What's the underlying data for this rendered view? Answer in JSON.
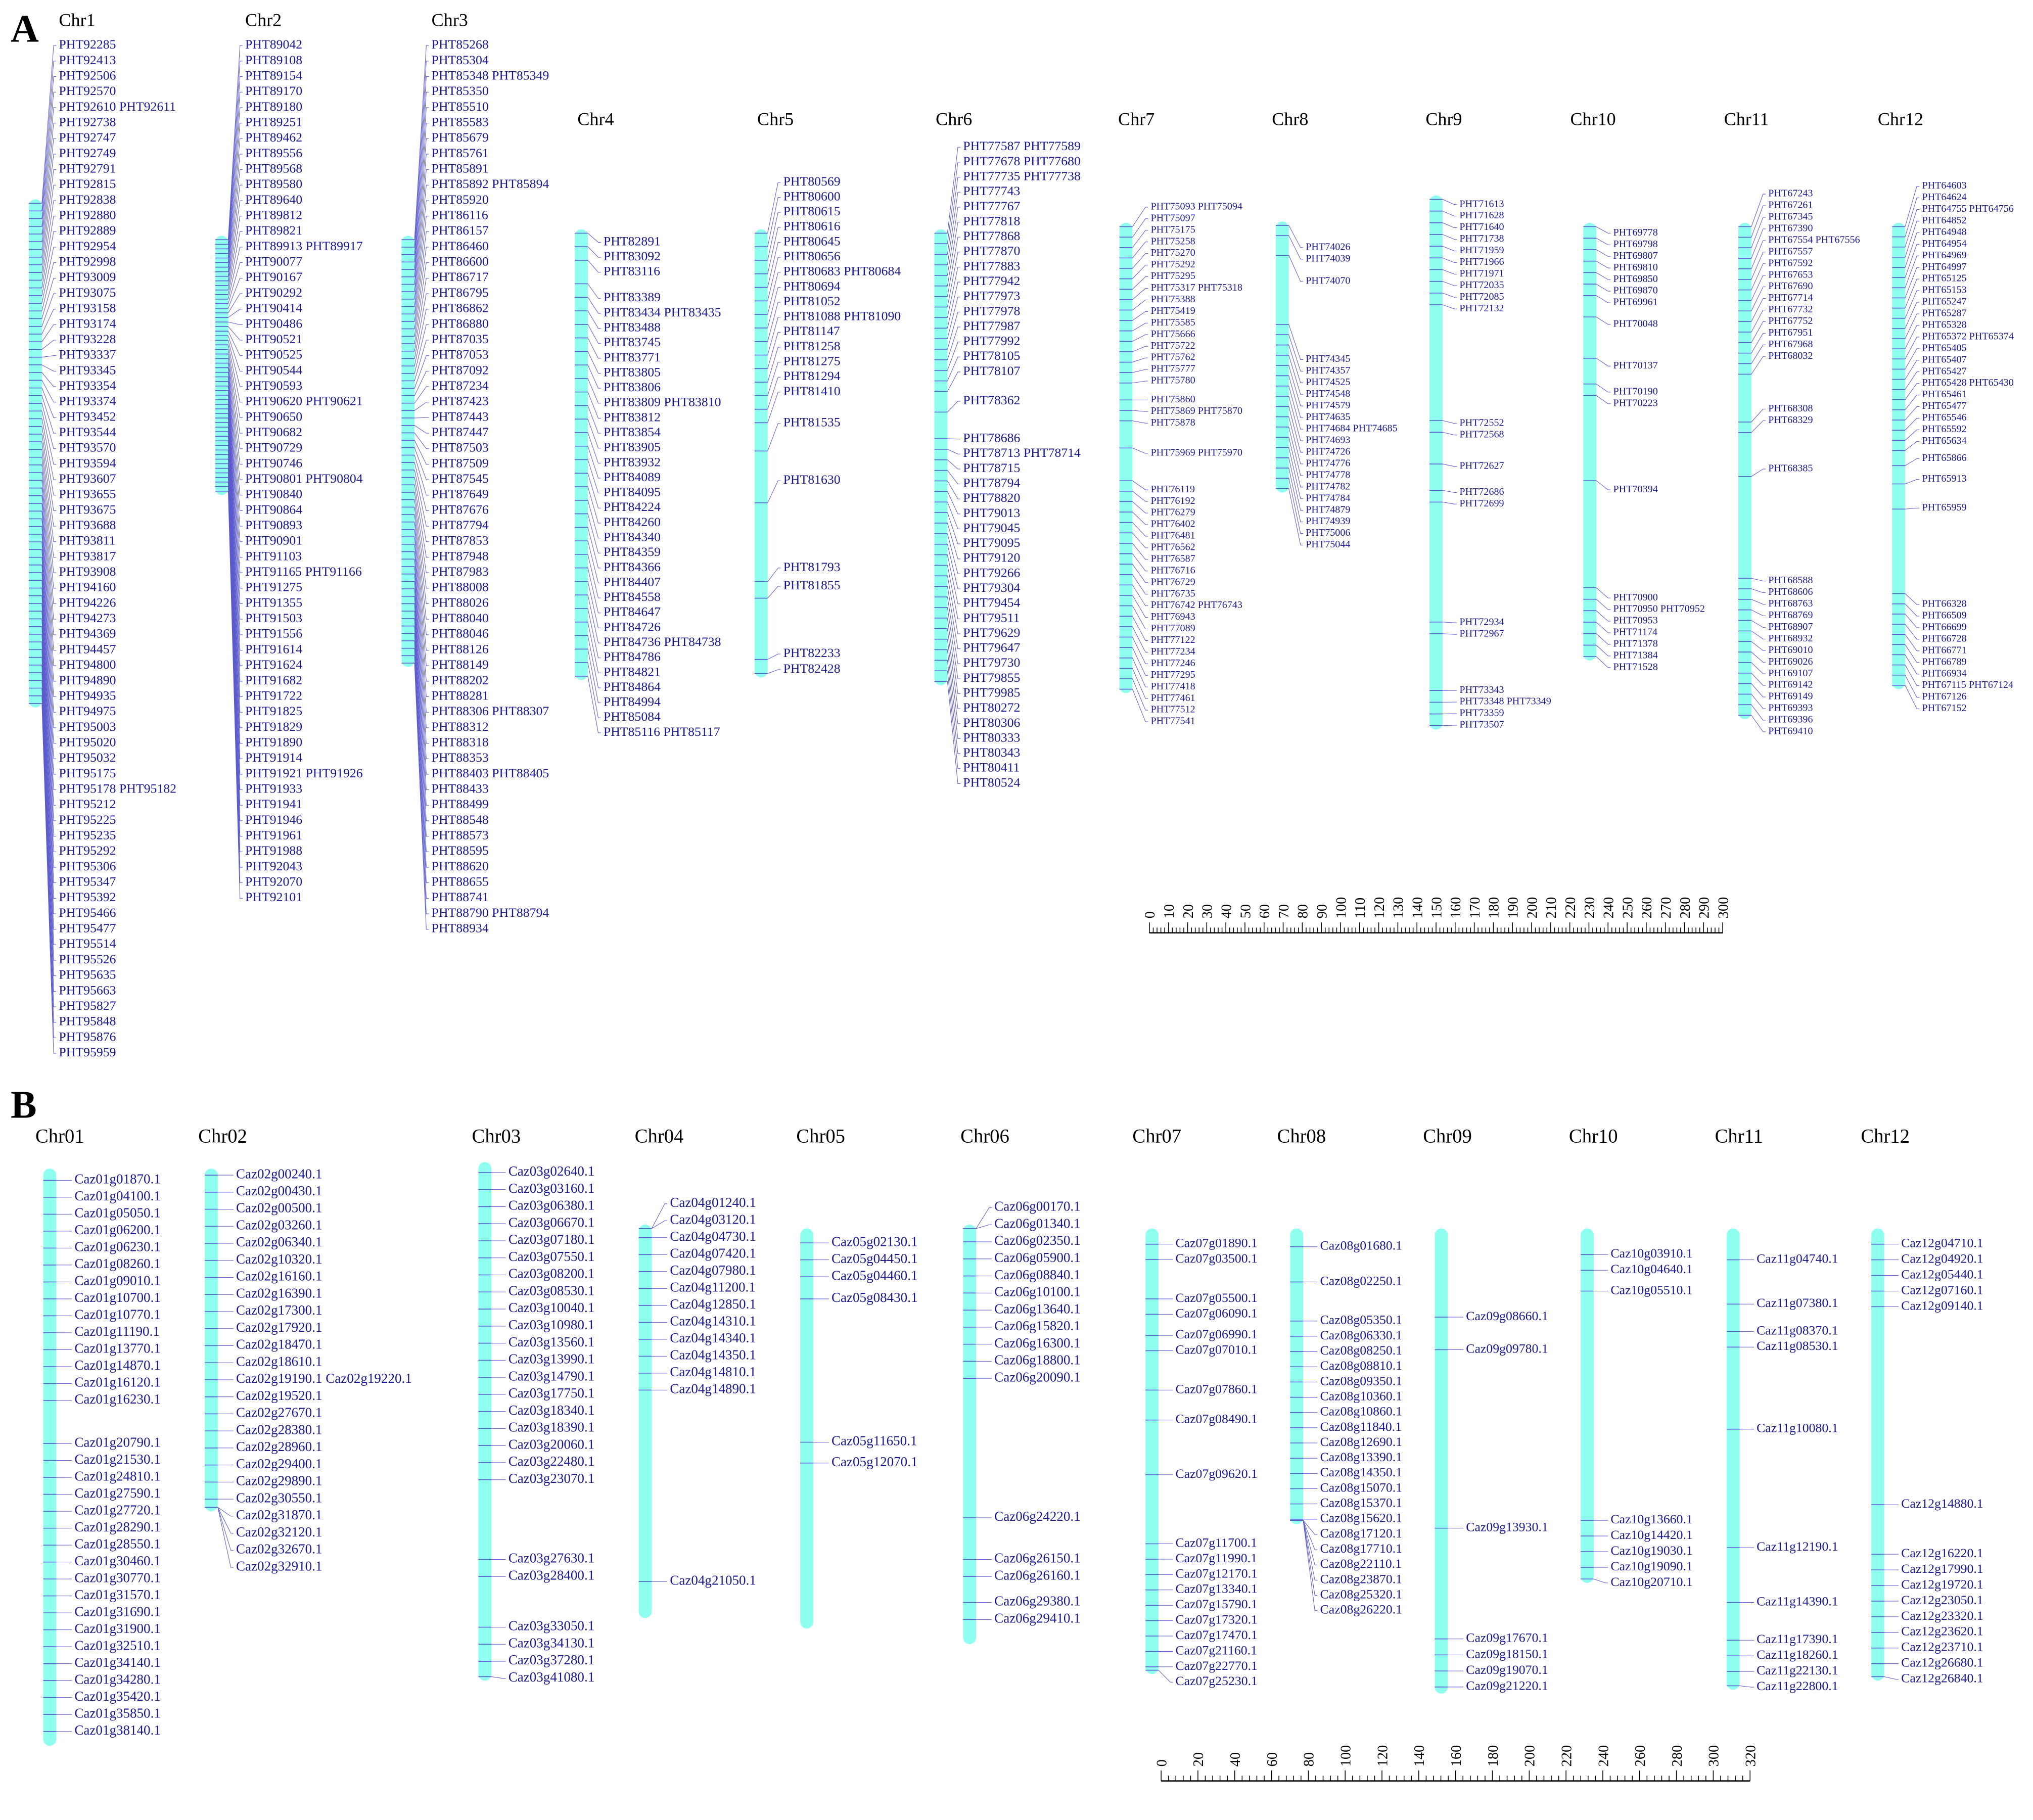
{
  "colors": {
    "chromosome": "#8ffff0",
    "gene_text": "#1a1a8c",
    "connector": "#5a5acc"
  },
  "panel_a": {
    "label": "A",
    "chromosomes": [
      {
        "name": "Chr1",
        "genes": [
          "PHT92285",
          "PHT92413",
          "PHT92506",
          "PHT92570",
          "PHT92610 PHT92611",
          "PHT92738",
          "PHT92747",
          "PHT92749",
          "PHT92791",
          "PHT92815",
          "PHT92838",
          "PHT92880",
          "PHT92889",
          "PHT92954",
          "PHT92998",
          "PHT93009",
          "PHT93075",
          "PHT93158",
          "PHT93174",
          "PHT93228",
          "PHT93337",
          "PHT93345",
          "PHT93354",
          "PHT93374",
          "PHT93452",
          "PHT93544",
          "PHT93570",
          "PHT93594",
          "PHT93607",
          "PHT93655",
          "PHT93675",
          "PHT93688",
          "PHT93811",
          "PHT93817",
          "PHT93908",
          "PHT94160",
          "PHT94226",
          "PHT94273",
          "PHT94369",
          "PHT94457",
          "PHT94800",
          "PHT94890",
          "PHT94935",
          "PHT94975",
          "PHT95003",
          "PHT95020",
          "PHT95032",
          "PHT95175",
          "PHT95178 PHT95182",
          "PHT95212",
          "PHT95225",
          "PHT95235",
          "PHT95292",
          "PHT95306",
          "PHT95347",
          "PHT95392",
          "PHT95466",
          "PHT95477",
          "PHT95514",
          "PHT95526",
          "PHT95635",
          "PHT95663",
          "PHT95827",
          "PHT95848",
          "PHT95876",
          "PHT95959"
        ]
      },
      {
        "name": "Chr2",
        "genes": [
          "PHT89042",
          "PHT89108",
          "PHT89154",
          "PHT89170",
          "PHT89180",
          "PHT89251",
          "PHT89462",
          "PHT89556",
          "PHT89568",
          "PHT89580",
          "PHT89640",
          "PHT89812",
          "PHT89821",
          "PHT89913 PHT89917",
          "PHT90077",
          "PHT90167",
          "PHT90292",
          "PHT90414",
          "PHT90486",
          "PHT90521",
          "PHT90525",
          "PHT90544",
          "PHT90593",
          "PHT90620 PHT90621",
          "PHT90650",
          "PHT90682",
          "PHT90729",
          "PHT90746",
          "PHT90801 PHT90804",
          "PHT90840",
          "PHT90864",
          "PHT90893",
          "PHT90901",
          "PHT91103",
          "PHT91165 PHT91166",
          "PHT91275",
          "PHT91355",
          "PHT91503",
          "PHT91556",
          "PHT91614",
          "PHT91624",
          "PHT91682",
          "PHT91722",
          "PHT91825",
          "PHT91829",
          "PHT91890",
          "PHT91914",
          "PHT91921 PHT91926",
          "PHT91933",
          "PHT91941",
          "PHT91946",
          "PHT91961",
          "PHT91988",
          "PHT92043",
          "PHT92070",
          "PHT92101"
        ]
      },
      {
        "name": "Chr3",
        "genes": [
          "PHT85268",
          "PHT85304",
          "PHT85348 PHT85349",
          "PHT85350",
          "PHT85510",
          "PHT85583",
          "PHT85679",
          "PHT85761",
          "PHT85891",
          "PHT85892 PHT85894",
          "PHT85920",
          "PHT86116",
          "PHT86157",
          "PHT86460",
          "PHT86600",
          "PHT86717",
          "PHT86795",
          "PHT86862",
          "PHT86880",
          "PHT87035",
          "PHT87053",
          "PHT87092",
          "PHT87234",
          "PHT87423",
          "PHT87443",
          "PHT87447",
          "PHT87503",
          "PHT87509",
          "PHT87545",
          "PHT87649",
          "PHT87676",
          "PHT87794",
          "PHT87853",
          "PHT87948",
          "PHT87983",
          "PHT88008",
          "PHT88026",
          "PHT88040",
          "PHT88046",
          "PHT88126",
          "PHT88149",
          "PHT88202",
          "PHT88281",
          "PHT88306 PHT88307",
          "PHT88312",
          "PHT88318",
          "PHT88353",
          "PHT88403 PHT88405",
          "PHT88433",
          "PHT88499",
          "PHT88548",
          "PHT88573",
          "PHT88595",
          "PHT88620",
          "PHT88655",
          "PHT88741",
          "PHT88790 PHT88794",
          "PHT88934"
        ]
      },
      {
        "name": "Chr4",
        "genes": [
          "PHT82891",
          "PHT83092",
          "PHT83116",
          "PHT83389",
          "PHT83434 PHT83435",
          "PHT83488",
          "PHT83745",
          "PHT83771",
          "PHT83805",
          "PHT83806",
          "PHT83809 PHT83810",
          "PHT83812",
          "PHT83854",
          "PHT83905",
          "PHT83932",
          "PHT84089",
          "PHT84095",
          "PHT84224",
          "PHT84260",
          "PHT84340",
          "PHT84359",
          "PHT84366",
          "PHT84407",
          "PHT84558",
          "PHT84647",
          "PHT84726",
          "PHT84736 PHT84738",
          "PHT84786",
          "PHT84821",
          "PHT84864",
          "PHT84994",
          "PHT85084",
          "PHT85116 PHT85117"
        ]
      },
      {
        "name": "Chr5",
        "genes": [
          "PHT80569",
          "PHT80600",
          "PHT80615",
          "PHT80616",
          "PHT80645",
          "PHT80656",
          "PHT80683 PHT80684",
          "PHT80694",
          "PHT81052",
          "PHT81088 PHT81090",
          "PHT81147",
          "PHT81258",
          "PHT81275",
          "PHT81294",
          "PHT81410",
          "PHT81535",
          "PHT81630",
          "PHT81793",
          "PHT81855",
          "PHT82233",
          "PHT82428"
        ]
      },
      {
        "name": "Chr6",
        "genes": [
          "PHT77587 PHT77589",
          "PHT77678 PHT77680",
          "PHT77735 PHT77738",
          "PHT77743",
          "PHT77767",
          "PHT77818",
          "PHT77868",
          "PHT77870",
          "PHT77883",
          "PHT77942",
          "PHT77973",
          "PHT77978",
          "PHT77987",
          "PHT77992",
          "PHT78105",
          "PHT78107",
          "PHT78362",
          "PHT78686",
          "PHT78713 PHT78714",
          "PHT78715",
          "PHT78794",
          "PHT78820",
          "PHT79013",
          "PHT79045",
          "PHT79095",
          "PHT79120",
          "PHT79266",
          "PHT79304",
          "PHT79454",
          "PHT79511",
          "PHT79629",
          "PHT79647",
          "PHT79730",
          "PHT79855",
          "PHT79985",
          "PHT80272",
          "PHT80306",
          "PHT80333",
          "PHT80343",
          "PHT80411",
          "PHT80524"
        ]
      },
      {
        "name": "Chr7",
        "genes": [
          "PHT75093 PHT75094",
          "PHT75097",
          "PHT75175",
          "PHT75258",
          "PHT75270",
          "PHT75292",
          "PHT75295",
          "PHT75317 PHT75318",
          "PHT75388",
          "PHT75419",
          "PHT75585",
          "PHT75666",
          "PHT75722",
          "PHT75762",
          "PHT75777",
          "PHT75780",
          "PHT75860",
          "PHT75869 PHT75870",
          "PHT75878",
          "PHT75969 PHT75970",
          "PHT76119",
          "PHT76192",
          "PHT76279",
          "PHT76402",
          "PHT76481",
          "PHT76562",
          "PHT76587",
          "PHT76716",
          "PHT76729",
          "PHT76735",
          "PHT76742 PHT76743",
          "PHT76943",
          "PHT77089",
          "PHT77122",
          "PHT77234",
          "PHT77246",
          "PHT77295",
          "PHT77418",
          "PHT77461",
          "PHT77512",
          "PHT77541"
        ]
      },
      {
        "name": "Chr8",
        "genes": [
          "PHT74026",
          "PHT74039",
          "PHT74070",
          "PHT74345",
          "PHT74357",
          "PHT74525",
          "PHT74548",
          "PHT74579",
          "PHT74635",
          "PHT74684 PHT74685",
          "PHT74693",
          "PHT74726",
          "PHT74776",
          "PHT74778",
          "PHT74782",
          "PHT74784",
          "PHT74879",
          "PHT74939",
          "PHT75006",
          "PHT75044"
        ]
      },
      {
        "name": "Chr9",
        "genes": [
          "PHT71613",
          "PHT71628",
          "PHT71640",
          "PHT71738",
          "PHT71959",
          "PHT71966",
          "PHT71971",
          "PHT72035",
          "PHT72085",
          "PHT72132",
          "PHT72552",
          "PHT72568",
          "PHT72627",
          "PHT72686",
          "PHT72699",
          "PHT72934",
          "PHT72967",
          "PHT73343",
          "PHT73348 PHT73349",
          "PHT73359",
          "PHT73507"
        ]
      },
      {
        "name": "Chr10",
        "genes": [
          "PHT69778",
          "PHT69798",
          "PHT69807",
          "PHT69810",
          "PHT69850",
          "PHT69870",
          "PHT69961",
          "PHT70048",
          "PHT70137",
          "PHT70190",
          "PHT70223",
          "PHT70394",
          "PHT70900",
          "PHT70950 PHT70952",
          "PHT70953",
          "PHT71174",
          "PHT71378",
          "PHT71384",
          "PHT71528"
        ]
      },
      {
        "name": "Chr11",
        "genes": [
          "PHT67243",
          "PHT67261",
          "PHT67345",
          "PHT67390",
          "PHT67554 PHT67556",
          "PHT67557",
          "PHT67592",
          "PHT67653",
          "PHT67690",
          "PHT67714",
          "PHT67732",
          "PHT67752",
          "PHT67951",
          "PHT67968",
          "PHT68032",
          "PHT68308",
          "PHT68329",
          "PHT68385",
          "PHT68588",
          "PHT68606",
          "PHT68763",
          "PHT68769",
          "PHT68907",
          "PHT68932",
          "PHT69010",
          "PHT69026",
          "PHT69107",
          "PHT69142",
          "PHT69149",
          "PHT69393",
          "PHT69396",
          "PHT69410"
        ]
      },
      {
        "name": "Chr12",
        "genes": [
          "PHT64603",
          "PHT64624",
          "PHT64755 PHT64756",
          "PHT64852",
          "PHT64948",
          "PHT64954",
          "PHT64969",
          "PHT64997",
          "PHT65125",
          "PHT65153",
          "PHT65247",
          "PHT65287",
          "PHT65328",
          "PHT65372 PHT65374",
          "PHT65405",
          "PHT65407",
          "PHT65427",
          "PHT65428 PHT65430",
          "PHT65461",
          "PHT65477",
          "PHT65546",
          "PHT65592",
          "PHT65634",
          "PHT65866",
          "PHT65913",
          "PHT65959",
          "PHT66328",
          "PHT66509",
          "PHT66699",
          "PHT66728",
          "PHT66771",
          "PHT66789",
          "PHT66934",
          "PHT67115 PHT67124",
          "PHT67126",
          "PHT67152"
        ]
      }
    ],
    "scale_ticks": [
      "0",
      "10",
      "20",
      "30",
      "40",
      "50",
      "60",
      "70",
      "80",
      "90",
      "100",
      "110",
      "120",
      "130",
      "140",
      "150",
      "160",
      "170",
      "180",
      "190",
      "200",
      "210",
      "220",
      "230",
      "240",
      "250",
      "260",
      "270",
      "280",
      "290",
      "300"
    ]
  },
  "panel_b": {
    "label": "B",
    "chromosomes": [
      {
        "name": "Chr01",
        "genes": [
          "Caz01g01870.1",
          "Caz01g04100.1",
          "Caz01g05050.1",
          "Caz01g06200.1",
          "Caz01g06230.1",
          "Caz01g08260.1",
          "Caz01g09010.1",
          "Caz01g10700.1",
          "Caz01g10770.1",
          "Caz01g11190.1",
          "Caz01g13770.1",
          "Caz01g14870.1",
          "Caz01g16120.1",
          "Caz01g16230.1",
          "Caz01g20790.1",
          "Caz01g21530.1",
          "Caz01g24810.1",
          "Caz01g27590.1",
          "Caz01g27720.1",
          "Caz01g28290.1",
          "Caz01g28550.1",
          "Caz01g30460.1",
          "Caz01g30770.1",
          "Caz01g31570.1",
          "Caz01g31690.1",
          "Caz01g31900.1",
          "Caz01g32510.1",
          "Caz01g34140.1",
          "Caz01g34280.1",
          "Caz01g35420.1",
          "Caz01g35850.1",
          "Caz01g38140.1"
        ]
      },
      {
        "name": "Chr02",
        "genes": [
          "Caz02g00240.1",
          "Caz02g00430.1",
          "Caz02g00500.1",
          "Caz02g03260.1",
          "Caz02g06340.1",
          "Caz02g10320.1",
          "Caz02g16160.1",
          "Caz02g16390.1",
          "Caz02g17300.1",
          "Caz02g17920.1",
          "Caz02g18470.1",
          "Caz02g18610.1",
          "Caz02g19190.1 Caz02g19220.1",
          "Caz02g19520.1",
          "Caz02g27670.1",
          "Caz02g28380.1",
          "Caz02g28960.1",
          "Caz02g29400.1",
          "Caz02g29890.1",
          "Caz02g30550.1",
          "Caz02g31870.1",
          "Caz02g32120.1",
          "Caz02g32670.1",
          "Caz02g32910.1"
        ]
      },
      {
        "name": "Chr03",
        "genes": [
          "Caz03g02640.1",
          "Caz03g03160.1",
          "Caz03g06380.1",
          "Caz03g06670.1",
          "Caz03g07180.1",
          "Caz03g07550.1",
          "Caz03g08200.1",
          "Caz03g08530.1",
          "Caz03g10040.1",
          "Caz03g10980.1",
          "Caz03g13560.1",
          "Caz03g13990.1",
          "Caz03g14790.1",
          "Caz03g17750.1",
          "Caz03g18340.1",
          "Caz03g18390.1",
          "Caz03g20060.1",
          "Caz03g22480.1",
          "Caz03g23070.1",
          "Caz03g27630.1",
          "Caz03g28400.1",
          "Caz03g33050.1",
          "Caz03g34130.1",
          "Caz03g37280.1",
          "Caz03g41080.1"
        ]
      },
      {
        "name": "Chr04",
        "genes": [
          "Caz04g01240.1",
          "Caz04g03120.1",
          "Caz04g04730.1",
          "Caz04g07420.1",
          "Caz04g07980.1",
          "Caz04g11200.1",
          "Caz04g12850.1",
          "Caz04g14310.1",
          "Caz04g14340.1",
          "Caz04g14350.1",
          "Caz04g14810.1",
          "Caz04g14890.1",
          "Caz04g21050.1"
        ]
      },
      {
        "name": "Chr05",
        "genes": [
          "Caz05g02130.1",
          "Caz05g04450.1",
          "Caz05g04460.1",
          "Caz05g08430.1",
          "Caz05g11650.1",
          "Caz05g12070.1"
        ]
      },
      {
        "name": "Chr06",
        "genes": [
          "Caz06g00170.1",
          "Caz06g01340.1",
          "Caz06g02350.1",
          "Caz06g05900.1",
          "Caz06g08840.1",
          "Caz06g10100.1",
          "Caz06g13640.1",
          "Caz06g15820.1",
          "Caz06g16300.1",
          "Caz06g18800.1",
          "Caz06g20090.1",
          "Caz06g24220.1",
          "Caz06g26150.1",
          "Caz06g26160.1",
          "Caz06g29380.1",
          "Caz06g29410.1"
        ]
      },
      {
        "name": "Chr07",
        "genes": [
          "Caz07g01890.1",
          "Caz07g03500.1",
          "Caz07g05500.1",
          "Caz07g06090.1",
          "Caz07g06990.1",
          "Caz07g07010.1",
          "Caz07g07860.1",
          "Caz07g08490.1",
          "Caz07g09620.1",
          "Caz07g11700.1",
          "Caz07g11990.1",
          "Caz07g12170.1",
          "Caz07g13340.1",
          "Caz07g15790.1",
          "Caz07g17320.1",
          "Caz07g17470.1",
          "Caz07g21160.1",
          "Caz07g22770.1",
          "Caz07g25230.1"
        ]
      },
      {
        "name": "Chr08",
        "genes": [
          "Caz08g01680.1",
          "Caz08g02250.1",
          "Caz08g05350.1",
          "Caz08g06330.1",
          "Caz08g08250.1",
          "Caz08g08810.1",
          "Caz08g09350.1",
          "Caz08g10360.1",
          "Caz08g10860.1",
          "Caz08g11840.1",
          "Caz08g12690.1",
          "Caz08g13390.1",
          "Caz08g14350.1",
          "Caz08g15070.1",
          "Caz08g15370.1",
          "Caz08g15620.1",
          "Caz08g17120.1",
          "Caz08g17710.1",
          "Caz08g22110.1",
          "Caz08g23870.1",
          "Caz08g25320.1",
          "Caz08g26220.1"
        ]
      },
      {
        "name": "Chr09",
        "genes": [
          "Caz09g08660.1",
          "Caz09g09780.1",
          "Caz09g13930.1",
          "Caz09g17670.1",
          "Caz09g18150.1",
          "Caz09g19070.1",
          "Caz09g21220.1"
        ]
      },
      {
        "name": "Chr10",
        "genes": [
          "Caz10g03910.1",
          "Caz10g04640.1",
          "Caz10g05510.1",
          "Caz10g13660.1",
          "Caz10g14420.1",
          "Caz10g19030.1",
          "Caz10g19090.1",
          "Caz10g20710.1"
        ]
      },
      {
        "name": "Chr11",
        "genes": [
          "Caz11g04740.1",
          "Caz11g07380.1",
          "Caz11g08370.1",
          "Caz11g08530.1",
          "Caz11g10080.1",
          "Caz11g12190.1",
          "Caz11g14390.1",
          "Caz11g17390.1",
          "Caz11g18260.1",
          "Caz11g22130.1",
          "Caz11g22800.1"
        ]
      },
      {
        "name": "Chr12",
        "genes": [
          "Caz12g04710.1",
          "Caz12g04920.1",
          "Caz12g05440.1",
          "Caz12g07160.1",
          "Caz12g09140.1",
          "Caz12g14880.1",
          "Caz12g16220.1",
          "Caz12g17990.1",
          "Caz12g19720.1",
          "Caz12g23050.1",
          "Caz12g23320.1",
          "Caz12g23620.1",
          "Caz12g23710.1",
          "Caz12g26680.1",
          "Caz12g26840.1"
        ]
      }
    ],
    "scale_ticks": [
      "0",
      "20",
      "40",
      "60",
      "80",
      "100",
      "120",
      "140",
      "160",
      "180",
      "200",
      "220",
      "240",
      "260",
      "280",
      "300",
      "320"
    ]
  }
}
